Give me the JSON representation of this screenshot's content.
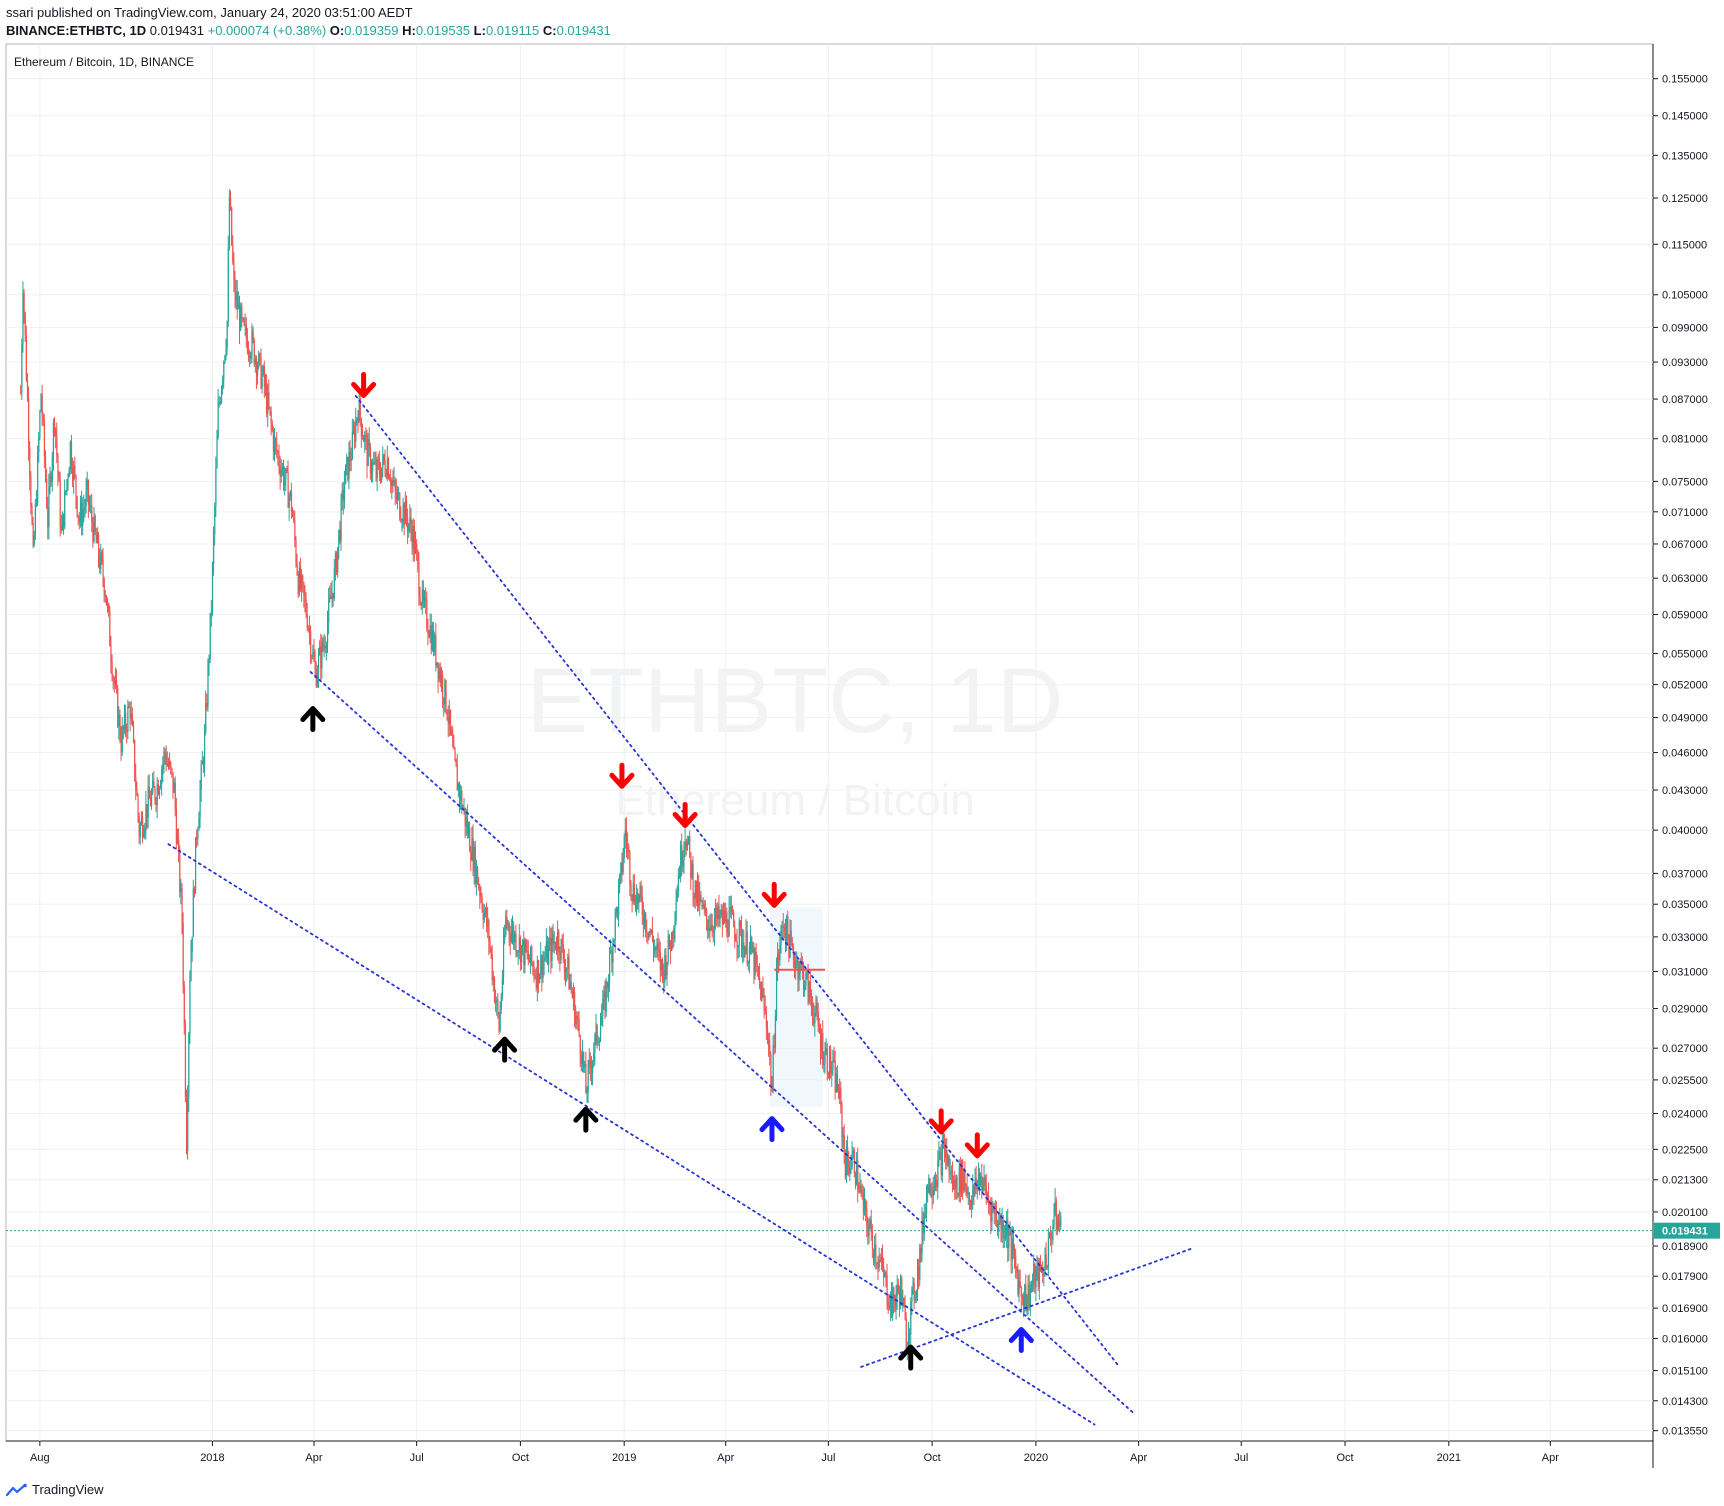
{
  "header": {
    "publish_line": "ssari published on TradingView.com, January 24, 2020 03:51:00 AEDT",
    "symbol": "BINANCE:ETHBTC, 1D",
    "last": "0.019431",
    "change": "+0.000074 (+0.38%)",
    "o_label": "O:",
    "o": "0.019359",
    "h_label": "H:",
    "h": "0.019535",
    "l_label": "L:",
    "l": "0.019115",
    "c_label": "C:",
    "c": "0.019431"
  },
  "chart_title": "Ethereum / Bitcoin, 1D, BINANCE",
  "watermark": {
    "line1": "ETHBTC, 1D",
    "line2": "Ethereum / Bitcoin"
  },
  "footer": {
    "brand": "TradingView"
  },
  "colors": {
    "up": "#26a69a",
    "down": "#ef5350",
    "trend": "#2733d6",
    "arrow_red": "#ff0000",
    "arrow_black": "#000000",
    "arrow_blue": "#1a1aff",
    "grid": "#eef0f3",
    "price_line": "#26a69a"
  },
  "chart_data": {
    "type": "candlestick",
    "title": "Ethereum / Bitcoin, 1D, BINANCE",
    "scale": "log",
    "ylim": [
      0.0133,
      0.165
    ],
    "xlim": [
      "2017-07-02",
      "2021-07-01"
    ],
    "y_ticks": [
      "0.155000",
      "0.145000",
      "0.135000",
      "0.125000",
      "0.115000",
      "0.105000",
      "0.099000",
      "0.093000",
      "0.087000",
      "0.081000",
      "0.075000",
      "0.071000",
      "0.067000",
      "0.063000",
      "0.059000",
      "0.055000",
      "0.052000",
      "0.049000",
      "0.046000",
      "0.043000",
      "0.040000",
      "0.037000",
      "0.035000",
      "0.033000",
      "0.031000",
      "0.029000",
      "0.027000",
      "0.025500",
      "0.024000",
      "0.022500",
      "0.021300",
      "0.020100",
      "0.018900",
      "0.017900",
      "0.016900",
      "0.016000",
      "0.015100",
      "0.014300",
      "0.013550"
    ],
    "x_ticks": [
      {
        "label": "Aug",
        "date": "2017-08-01"
      },
      {
        "label": "2018",
        "date": "2018-01-01"
      },
      {
        "label": "Apr",
        "date": "2018-04-01"
      },
      {
        "label": "Jul",
        "date": "2018-07-01"
      },
      {
        "label": "Oct",
        "date": "2018-10-01"
      },
      {
        "label": "2019",
        "date": "2019-01-01"
      },
      {
        "label": "Apr",
        "date": "2019-04-01"
      },
      {
        "label": "Jul",
        "date": "2019-07-01"
      },
      {
        "label": "Oct",
        "date": "2019-10-01"
      },
      {
        "label": "2020",
        "date": "2020-01-01"
      },
      {
        "label": "Apr",
        "date": "2020-04-01"
      },
      {
        "label": "Jul",
        "date": "2020-07-01"
      },
      {
        "label": "Oct",
        "date": "2020-10-01"
      },
      {
        "label": "2021",
        "date": "2021-01-01"
      },
      {
        "label": "Apr",
        "date": "2021-04-01"
      }
    ],
    "last_price": "0.019431",
    "price_path": [
      [
        "2017-07-15",
        0.088
      ],
      [
        "2017-07-17",
        0.108
      ],
      [
        "2017-07-22",
        0.082
      ],
      [
        "2017-07-26",
        0.065
      ],
      [
        "2017-08-02",
        0.088
      ],
      [
        "2017-08-08",
        0.07
      ],
      [
        "2017-08-14",
        0.085
      ],
      [
        "2017-08-20",
        0.068
      ],
      [
        "2017-08-28",
        0.08
      ],
      [
        "2017-09-05",
        0.07
      ],
      [
        "2017-09-12",
        0.073
      ],
      [
        "2017-09-20",
        0.067
      ],
      [
        "2017-09-28",
        0.062
      ],
      [
        "2017-10-05",
        0.053
      ],
      [
        "2017-10-12",
        0.047
      ],
      [
        "2017-10-20",
        0.05
      ],
      [
        "2017-10-28",
        0.04
      ],
      [
        "2017-11-05",
        0.042
      ],
      [
        "2017-11-12",
        0.043
      ],
      [
        "2017-11-20",
        0.046
      ],
      [
        "2017-11-28",
        0.043
      ],
      [
        "2017-12-05",
        0.034
      ],
      [
        "2017-12-09",
        0.023
      ],
      [
        "2017-12-12",
        0.031
      ],
      [
        "2017-12-18",
        0.04
      ],
      [
        "2017-12-25",
        0.047
      ],
      [
        "2017-12-31",
        0.06
      ],
      [
        "2018-01-06",
        0.085
      ],
      [
        "2018-01-10",
        0.092
      ],
      [
        "2018-01-14",
        0.1
      ],
      [
        "2018-01-16",
        0.125
      ],
      [
        "2018-01-20",
        0.106
      ],
      [
        "2018-01-28",
        0.098
      ],
      [
        "2018-02-05",
        0.096
      ],
      [
        "2018-02-15",
        0.09
      ],
      [
        "2018-02-25",
        0.08
      ],
      [
        "2018-03-05",
        0.076
      ],
      [
        "2018-03-12",
        0.072
      ],
      [
        "2018-03-18",
        0.063
      ],
      [
        "2018-03-26",
        0.059
      ],
      [
        "2018-04-02",
        0.053
      ],
      [
        "2018-04-10",
        0.056
      ],
      [
        "2018-04-20",
        0.064
      ],
      [
        "2018-04-28",
        0.075
      ],
      [
        "2018-05-05",
        0.08
      ],
      [
        "2018-05-10",
        0.086
      ],
      [
        "2018-05-18",
        0.079
      ],
      [
        "2018-05-26",
        0.076
      ],
      [
        "2018-06-05",
        0.078
      ],
      [
        "2018-06-12",
        0.073
      ],
      [
        "2018-06-20",
        0.071
      ],
      [
        "2018-06-28",
        0.068
      ],
      [
        "2018-07-06",
        0.06
      ],
      [
        "2018-07-12",
        0.058
      ],
      [
        "2018-07-20",
        0.054
      ],
      [
        "2018-07-28",
        0.05
      ],
      [
        "2018-08-03",
        0.045
      ],
      [
        "2018-08-10",
        0.042
      ],
      [
        "2018-08-18",
        0.039
      ],
      [
        "2018-08-26",
        0.036
      ],
      [
        "2018-09-03",
        0.033
      ],
      [
        "2018-09-08",
        0.03
      ],
      [
        "2018-09-12",
        0.028
      ],
      [
        "2018-09-18",
        0.034
      ],
      [
        "2018-09-26",
        0.033
      ],
      [
        "2018-10-05",
        0.032
      ],
      [
        "2018-10-15",
        0.031
      ],
      [
        "2018-10-25",
        0.032
      ],
      [
        "2018-11-03",
        0.033
      ],
      [
        "2018-11-12",
        0.031
      ],
      [
        "2018-11-18",
        0.029
      ],
      [
        "2018-11-24",
        0.027
      ],
      [
        "2018-11-28",
        0.025
      ],
      [
        "2018-12-05",
        0.027
      ],
      [
        "2018-12-14",
        0.029
      ],
      [
        "2018-12-22",
        0.033
      ],
      [
        "2018-12-28",
        0.036
      ],
      [
        "2019-01-02",
        0.04
      ],
      [
        "2019-01-08",
        0.036
      ],
      [
        "2019-01-16",
        0.035
      ],
      [
        "2019-01-25",
        0.033
      ],
      [
        "2019-02-04",
        0.031
      ],
      [
        "2019-02-12",
        0.033
      ],
      [
        "2019-02-18",
        0.037
      ],
      [
        "2019-02-24",
        0.04
      ],
      [
        "2019-03-04",
        0.036
      ],
      [
        "2019-03-14",
        0.034
      ],
      [
        "2019-03-24",
        0.034
      ],
      [
        "2019-04-04",
        0.034
      ],
      [
        "2019-04-14",
        0.033
      ],
      [
        "2019-04-24",
        0.032
      ],
      [
        "2019-05-02",
        0.03
      ],
      [
        "2019-05-08",
        0.028
      ],
      [
        "2019-05-12",
        0.025
      ],
      [
        "2019-05-16",
        0.031
      ],
      [
        "2019-05-22",
        0.034
      ],
      [
        "2019-05-30",
        0.032
      ],
      [
        "2019-06-08",
        0.031
      ],
      [
        "2019-06-18",
        0.029
      ],
      [
        "2019-06-26",
        0.027
      ],
      [
        "2019-07-04",
        0.026
      ],
      [
        "2019-07-10",
        0.025
      ],
      [
        "2019-07-16",
        0.022
      ],
      [
        "2019-07-24",
        0.022
      ],
      [
        "2019-08-02",
        0.02
      ],
      [
        "2019-08-10",
        0.019
      ],
      [
        "2019-08-18",
        0.018
      ],
      [
        "2019-08-26",
        0.017
      ],
      [
        "2019-09-03",
        0.0175
      ],
      [
        "2019-09-08",
        0.016
      ],
      [
        "2019-09-14",
        0.0172
      ],
      [
        "2019-09-20",
        0.0185
      ],
      [
        "2019-09-26",
        0.021
      ],
      [
        "2019-10-04",
        0.0215
      ],
      [
        "2019-10-12",
        0.0225
      ],
      [
        "2019-10-20",
        0.021
      ],
      [
        "2019-10-28",
        0.0215
      ],
      [
        "2019-11-05",
        0.0205
      ],
      [
        "2019-11-12",
        0.0215
      ],
      [
        "2019-11-20",
        0.0205
      ],
      [
        "2019-11-28",
        0.0198
      ],
      [
        "2019-12-06",
        0.0195
      ],
      [
        "2019-12-12",
        0.0185
      ],
      [
        "2019-12-18",
        0.0175
      ],
      [
        "2019-12-24",
        0.0172
      ],
      [
        "2019-12-30",
        0.0178
      ],
      [
        "2020-01-06",
        0.018
      ],
      [
        "2020-01-12",
        0.0188
      ],
      [
        "2020-01-17",
        0.02
      ],
      [
        "2020-01-24",
        0.019431
      ]
    ],
    "annotations": {
      "trend_lines": [
        {
          "from": [
            "2018-05-08",
            0.0875
          ],
          "to": [
            "2020-03-15",
            0.0152
          ]
        },
        {
          "from": [
            "2018-03-29",
            0.0532
          ],
          "to": [
            "2020-03-27",
            0.014
          ]
        },
        {
          "from": [
            "2017-11-23",
            0.039
          ],
          "to": [
            "2020-02-22",
            0.0137
          ]
        },
        {
          "from": [
            "2019-07-30",
            0.0152
          ],
          "to": [
            "2020-05-17",
            0.0188
          ]
        }
      ],
      "arrows_down_red": [
        [
          "2018-05-15",
          0.089
        ],
        [
          "2018-12-30",
          0.044
        ],
        [
          "2019-02-24",
          0.041
        ],
        [
          "2019-05-14",
          0.0355
        ],
        [
          "2019-10-09",
          0.0236
        ],
        [
          "2019-11-10",
          0.0226
        ]
      ],
      "arrows_up_black": [
        [
          "2018-03-31",
          0.049
        ],
        [
          "2018-09-17",
          0.027
        ],
        [
          "2018-11-28",
          0.0238
        ],
        [
          "2019-09-12",
          0.0155
        ]
      ],
      "arrows_up_blue": [
        [
          "2019-05-12",
          0.0234
        ],
        [
          "2019-12-19",
          0.016
        ]
      ]
    }
  }
}
